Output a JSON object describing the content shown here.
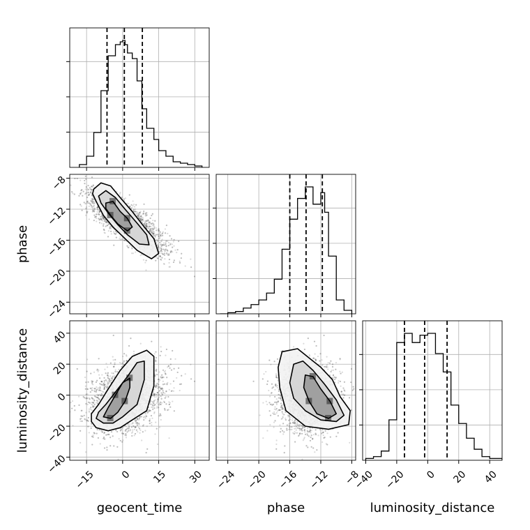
{
  "chart_data": {
    "type": "corner",
    "parameters": [
      "geocent_time",
      "phase",
      "luminosity_distance"
    ],
    "axes": {
      "geocent_time": {
        "label": "geocent_time",
        "range": [
          -22,
          36
        ],
        "ticks": [
          -15,
          0,
          15,
          30
        ],
        "tick_labels": [
          "−15",
          "0",
          "15",
          "30"
        ]
      },
      "phase": {
        "label": "phase",
        "range": [
          -25.5,
          -7.5
        ],
        "ticks": [
          -24,
          -20,
          -16,
          -12,
          -8
        ],
        "tick_labels": [
          "−24",
          "−20",
          "−16",
          "−12",
          "−8"
        ]
      },
      "luminosity_distance": {
        "label": "luminosity_distance",
        "range": [
          -42,
          48
        ],
        "ticks": [
          -40,
          -20,
          0,
          20,
          40
        ],
        "tick_labels": [
          "−40",
          "−20",
          "0",
          "20",
          "40"
        ]
      }
    },
    "histograms": [
      {
        "parameter": "geocent_time",
        "bin_edges": [
          -18,
          -15,
          -12,
          -9,
          -6,
          -3,
          -1,
          0,
          1,
          2,
          4,
          6,
          8,
          10,
          13,
          15,
          18,
          21,
          24,
          27,
          30,
          33
        ],
        "counts": [
          2,
          8,
          25,
          55,
          80,
          88,
          90,
          91,
          88,
          82,
          78,
          62,
          42,
          28,
          20,
          12,
          8,
          4,
          3,
          2,
          1
        ],
        "quantiles": [
          -6.5,
          0.7,
          8.2
        ]
      },
      {
        "parameter": "phase",
        "bin_edges": [
          -25,
          -24,
          -23,
          -22,
          -21,
          -20,
          -19,
          -18,
          -17,
          -16,
          -15,
          -14,
          -13,
          -12,
          -11.5,
          -11,
          -10,
          -9,
          -8
        ],
        "counts": [
          0,
          1,
          2,
          5,
          8,
          12,
          18,
          30,
          56,
          82,
          100,
          110,
          95,
          105,
          88,
          50,
          12,
          3
        ],
        "quantiles": [
          -16,
          -13.9,
          -11.8
        ]
      },
      {
        "parameter": "luminosity_distance",
        "bin_edges": [
          -40,
          -35,
          -30,
          -25,
          -20,
          -15,
          -10,
          -5,
          0,
          5,
          10,
          15,
          20,
          25,
          30,
          35,
          40,
          48
        ],
        "counts": [
          1,
          2,
          5,
          22,
          64,
          69,
          64,
          68,
          69,
          58,
          48,
          30,
          20,
          12,
          6,
          2,
          1
        ],
        "quantiles": [
          -15,
          -2,
          12.5
        ]
      }
    ],
    "contours": [
      {
        "x_parameter": "geocent_time",
        "y_parameter": "phase",
        "levels": [
          [
            [
              -12,
              -9.4
            ],
            [
              -9,
              -8.6
            ],
            [
              -5,
              -9
            ],
            [
              -1,
              -10.5
            ],
            [
              4,
              -12.3
            ],
            [
              9,
              -14.3
            ],
            [
              13,
              -15.8
            ],
            [
              15,
              -17.7
            ],
            [
              12,
              -18.4
            ],
            [
              6,
              -17.3
            ],
            [
              1,
              -15.8
            ],
            [
              -4,
              -14.3
            ],
            [
              -8,
              -12.8
            ],
            [
              -11,
              -11
            ],
            [
              -12.5,
              -10
            ]
          ],
          [
            [
              -10,
              -10.3
            ],
            [
              -7,
              -9.6
            ],
            [
              -3,
              -10.5
            ],
            [
              1,
              -12
            ],
            [
              6,
              -13.8
            ],
            [
              10,
              -15.3
            ],
            [
              11,
              -16.6
            ],
            [
              7,
              -16.5
            ],
            [
              2,
              -15.3
            ],
            [
              -2,
              -14
            ],
            [
              -6,
              -12.5
            ],
            [
              -9,
              -11.2
            ]
          ],
          [
            [
              -7,
              -11.2
            ],
            [
              -4,
              -11
            ],
            [
              -1,
              -12.3
            ],
            [
              2,
              -13.2
            ],
            [
              4,
              -14.3
            ],
            [
              2,
              -14.8
            ],
            [
              -2,
              -13.9
            ],
            [
              -5,
              -12.8
            ],
            [
              -7,
              -11.9
            ]
          ]
        ]
      },
      {
        "x_parameter": "geocent_time",
        "y_parameter": "luminosity_distance",
        "levels": [
          [
            [
              -13,
              -17
            ],
            [
              -11,
              -21
            ],
            [
              -6,
              -23
            ],
            [
              -1,
              -21
            ],
            [
              4,
              -16
            ],
            [
              10,
              -10
            ],
            [
              13,
              6
            ],
            [
              13,
              25
            ],
            [
              10,
              29
            ],
            [
              4,
              25
            ],
            [
              -1,
              16
            ],
            [
              -6,
              4
            ],
            [
              -10,
              -6
            ],
            [
              -13,
              -12
            ]
          ],
          [
            [
              -11,
              -15
            ],
            [
              -8,
              -18
            ],
            [
              -4,
              -18
            ],
            [
              0,
              -14
            ],
            [
              6,
              -6
            ],
            [
              9,
              10
            ],
            [
              9,
              22
            ],
            [
              6,
              21
            ],
            [
              2,
              12
            ],
            [
              -3,
              2
            ],
            [
              -7,
              -6
            ],
            [
              -10,
              -11
            ]
          ],
          [
            [
              -8,
              -14
            ],
            [
              -5,
              -15
            ],
            [
              -2,
              -11
            ],
            [
              1,
              -4
            ],
            [
              3,
              5
            ],
            [
              3,
              11
            ],
            [
              0,
              8
            ],
            [
              -3,
              0
            ],
            [
              -6,
              -8
            ]
          ]
        ]
      },
      {
        "x_parameter": "phase",
        "y_parameter": "luminosity_distance",
        "levels": [
          [
            [
              -17,
              28
            ],
            [
              -15,
              30
            ],
            [
              -13.5,
              24
            ],
            [
              -12,
              18
            ],
            [
              -10.5,
              10
            ],
            [
              -9.5,
              -1
            ],
            [
              -8.2,
              -10
            ],
            [
              -8.4,
              -19
            ],
            [
              -11,
              -22
            ],
            [
              -14,
              -20
            ],
            [
              -16.5,
              -10
            ],
            [
              -17.3,
              5
            ],
            [
              -17.5,
              18
            ]
          ],
          [
            [
              -15.5,
              20
            ],
            [
              -14.3,
              22
            ],
            [
              -13,
              16
            ],
            [
              -11.5,
              7
            ],
            [
              -10,
              -3
            ],
            [
              -9,
              -13
            ],
            [
              -10,
              -17
            ],
            [
              -12,
              -16
            ],
            [
              -14,
              -10
            ],
            [
              -15.5,
              -2
            ],
            [
              -16,
              8
            ]
          ],
          [
            [
              -14,
              13
            ],
            [
              -13,
              12
            ],
            [
              -12,
              4
            ],
            [
              -10.8,
              -4
            ],
            [
              -10,
              -12
            ],
            [
              -11,
              -15
            ],
            [
              -12.5,
              -12
            ],
            [
              -13.5,
              -4
            ],
            [
              -14.2,
              5
            ]
          ]
        ]
      }
    ]
  }
}
